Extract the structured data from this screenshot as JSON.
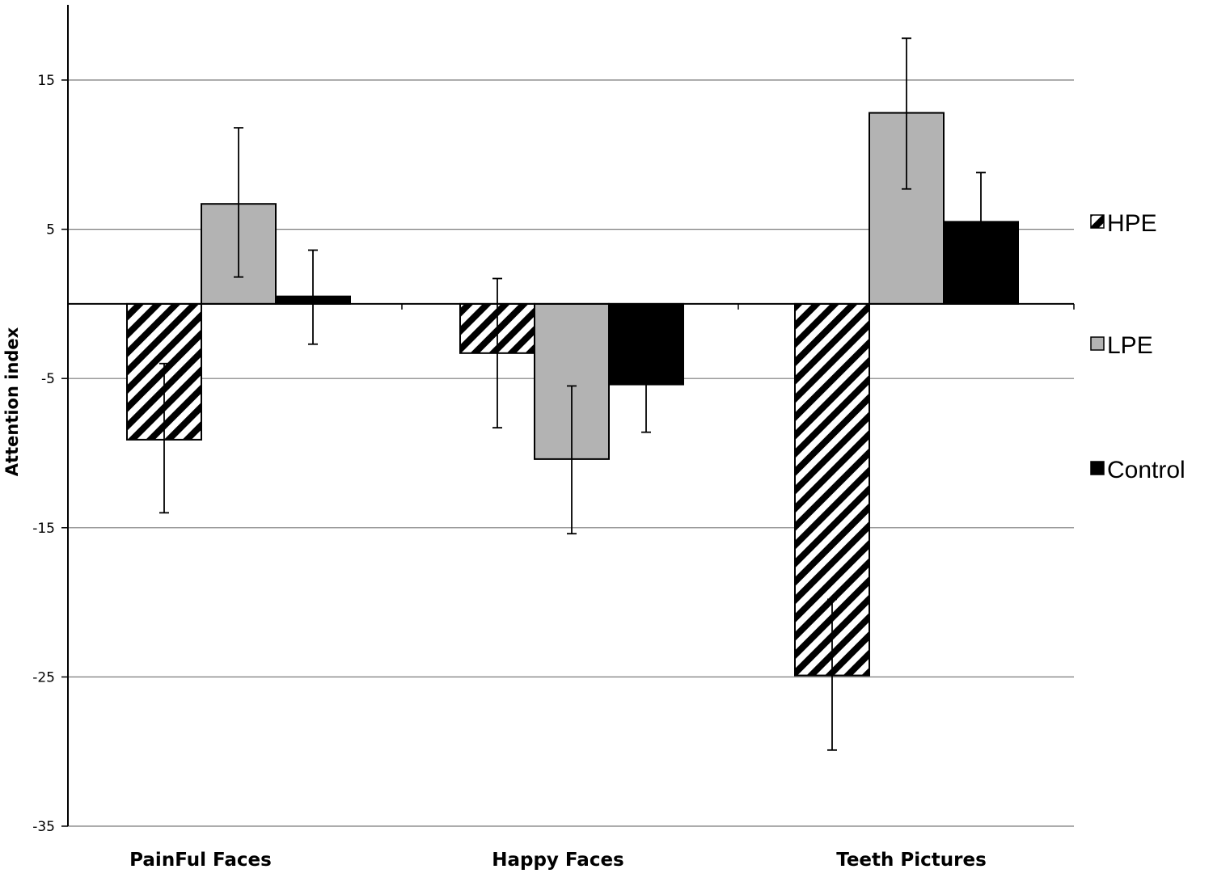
{
  "chart_data": {
    "type": "bar",
    "title": "",
    "xlabel": "",
    "ylabel": "Attention index",
    "ylim": [
      -35,
      20
    ],
    "yticks": [
      15,
      5,
      -5,
      -15,
      -25,
      -35
    ],
    "grid": true,
    "legend_position": "right",
    "categories": [
      "PainFul Faces",
      "Happy Faces",
      "Teeth Pictures"
    ],
    "series": [
      {
        "name": "HPE",
        "values": [
          -9.1,
          -3.3,
          -24.9
        ],
        "error_low": [
          -14.0,
          -8.3,
          -29.9
        ],
        "error_high": [
          -4.0,
          1.7,
          -19.8
        ],
        "style": "hatched"
      },
      {
        "name": "LPE",
        "values": [
          6.7,
          -10.4,
          12.8
        ],
        "error_low": [
          1.8,
          -15.4,
          7.7
        ],
        "error_high": [
          11.8,
          -5.5,
          17.8
        ],
        "color": "#b3b3b3"
      },
      {
        "name": "Control",
        "values": [
          0.5,
          -5.4,
          5.5
        ],
        "error_low": [
          -2.7,
          -8.6,
          2.3
        ],
        "error_high": [
          3.6,
          -2.2,
          8.8
        ],
        "color": "#000000"
      }
    ]
  }
}
